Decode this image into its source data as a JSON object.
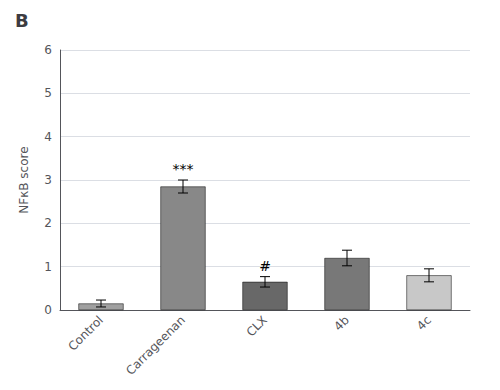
{
  "chart_data": {
    "type": "bar",
    "title": "B",
    "categories": [
      "Control",
      "Carrageenan",
      "CLX",
      "4b",
      "4c"
    ],
    "values": [
      0.15,
      2.85,
      0.65,
      1.2,
      0.8
    ],
    "errors": [
      0.08,
      0.15,
      0.12,
      0.18,
      0.15
    ],
    "colors": [
      "#a0a0a0",
      "#888888",
      "#686868",
      "#787878",
      "#c8c8c8"
    ],
    "ylabel": "NFκB score",
    "ylim": [
      0,
      6
    ],
    "yticks": [
      0,
      1,
      2,
      3,
      4,
      5,
      6
    ],
    "grid": true,
    "annotations": [
      {
        "category": "Carrageenan",
        "text": "***"
      },
      {
        "category": "CLX",
        "text": "#"
      }
    ]
  }
}
